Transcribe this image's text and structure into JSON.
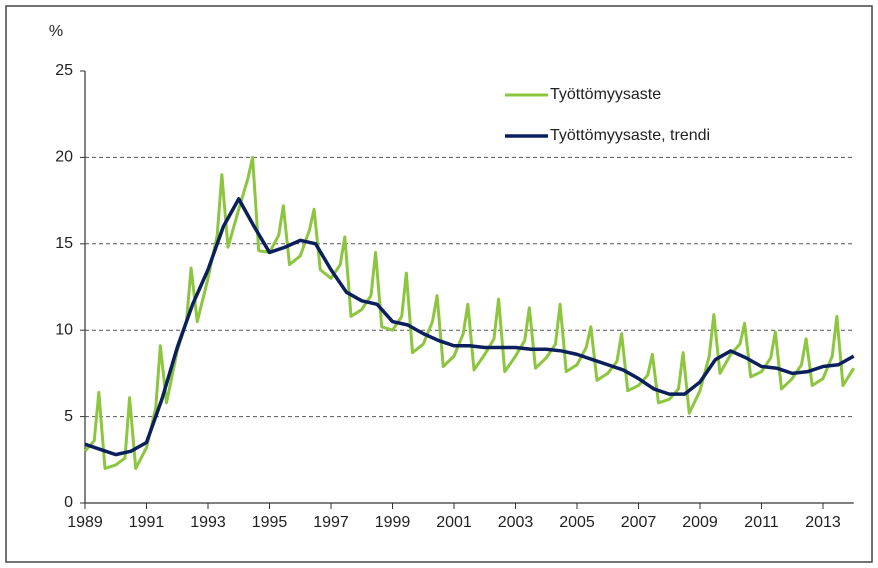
{
  "chart_data": {
    "type": "line",
    "y_unit": "%",
    "xlim": [
      1989,
      2014
    ],
    "xticks": [
      1989,
      1991,
      1993,
      1995,
      1997,
      1999,
      2001,
      2003,
      2005,
      2007,
      2009,
      2011,
      2013
    ],
    "ylim": [
      0,
      25
    ],
    "yticks": [
      0,
      5,
      10,
      15,
      20,
      25
    ],
    "grid": true,
    "legend": "top-right",
    "series": [
      {
        "name": "Työttömyysaste",
        "color": "#8cc63f",
        "x": [
          1989,
          1989.3,
          1989.45,
          1989.65,
          1990,
          1990.3,
          1990.45,
          1990.65,
          1991,
          1991.3,
          1991.45,
          1991.65,
          1992,
          1992.3,
          1992.45,
          1992.65,
          1993,
          1993.3,
          1993.45,
          1993.65,
          1994,
          1994.3,
          1994.45,
          1994.65,
          1995,
          1995.3,
          1995.45,
          1995.65,
          1996,
          1996.3,
          1996.45,
          1996.65,
          1997,
          1997.3,
          1997.45,
          1997.65,
          1998,
          1998.3,
          1998.45,
          1998.65,
          1999,
          1999.3,
          1999.45,
          1999.65,
          2000,
          2000.3,
          2000.45,
          2000.65,
          2001,
          2001.3,
          2001.45,
          2001.65,
          2002,
          2002.3,
          2002.45,
          2002.65,
          2003,
          2003.3,
          2003.45,
          2003.65,
          2004,
          2004.3,
          2004.45,
          2004.65,
          2005,
          2005.3,
          2005.45,
          2005.65,
          2006,
          2006.3,
          2006.45,
          2006.65,
          2007,
          2007.3,
          2007.45,
          2007.65,
          2008,
          2008.3,
          2008.45,
          2008.65,
          2009,
          2009.3,
          2009.45,
          2009.65,
          2010,
          2010.3,
          2010.45,
          2010.65,
          2011,
          2011.3,
          2011.45,
          2011.65,
          2012,
          2012.3,
          2012.45,
          2012.65,
          2013,
          2013.3,
          2013.45,
          2013.65,
          2014
        ],
        "values": [
          3.0,
          3.6,
          6.4,
          2.0,
          2.2,
          2.6,
          6.1,
          2.0,
          3.2,
          5.5,
          9.1,
          5.8,
          8.8,
          10.5,
          13.6,
          10.5,
          13.0,
          15.5,
          19.0,
          14.8,
          17.0,
          18.8,
          20.0,
          14.6,
          14.5,
          15.5,
          17.2,
          13.8,
          14.3,
          15.8,
          17.0,
          13.5,
          13.0,
          13.8,
          15.4,
          10.8,
          11.2,
          12.0,
          14.5,
          10.2,
          10.0,
          10.8,
          13.3,
          8.7,
          9.2,
          10.5,
          12.0,
          7.9,
          8.5,
          9.8,
          11.5,
          7.7,
          8.6,
          9.5,
          11.8,
          7.6,
          8.5,
          9.4,
          11.3,
          7.8,
          8.4,
          9.2,
          11.5,
          7.6,
          8.0,
          9.0,
          10.2,
          7.1,
          7.5,
          8.2,
          9.8,
          6.5,
          6.8,
          7.4,
          8.6,
          5.8,
          6.0,
          6.6,
          8.7,
          5.2,
          6.5,
          8.5,
          10.9,
          7.5,
          8.6,
          9.2,
          10.4,
          7.3,
          7.6,
          8.4,
          9.9,
          6.6,
          7.2,
          8.0,
          9.5,
          6.8,
          7.2,
          8.5,
          10.8,
          6.8,
          7.8
        ]
      },
      {
        "name": "Työttömyysaste, trendi",
        "color": "#0a1f5c",
        "x": [
          1989,
          1989.5,
          1990,
          1990.5,
          1991,
          1991.5,
          1992,
          1992.5,
          1993,
          1993.5,
          1994,
          1994.5,
          1995,
          1995.5,
          1996,
          1996.5,
          1997,
          1997.5,
          1998,
          1998.5,
          1999,
          1999.5,
          2000,
          2000.5,
          2001,
          2001.5,
          2002,
          2002.5,
          2003,
          2003.5,
          2004,
          2004.5,
          2005,
          2005.5,
          2006,
          2006.5,
          2007,
          2007.5,
          2008,
          2008.5,
          2009,
          2009.5,
          2010,
          2010.5,
          2011,
          2011.5,
          2012,
          2012.5,
          2013,
          2013.5,
          2014
        ],
        "values": [
          3.4,
          3.1,
          2.8,
          3.0,
          3.5,
          6.0,
          9.0,
          11.5,
          13.5,
          16.0,
          17.6,
          16.0,
          14.5,
          14.8,
          15.2,
          15.0,
          13.5,
          12.2,
          11.7,
          11.5,
          10.5,
          10.3,
          9.8,
          9.4,
          9.1,
          9.1,
          9.0,
          9.0,
          9.0,
          8.9,
          8.9,
          8.8,
          8.6,
          8.3,
          8.0,
          7.7,
          7.2,
          6.6,
          6.3,
          6.3,
          7.0,
          8.3,
          8.8,
          8.4,
          7.9,
          7.8,
          7.5,
          7.6,
          7.9,
          8.0,
          8.5
        ]
      }
    ]
  }
}
